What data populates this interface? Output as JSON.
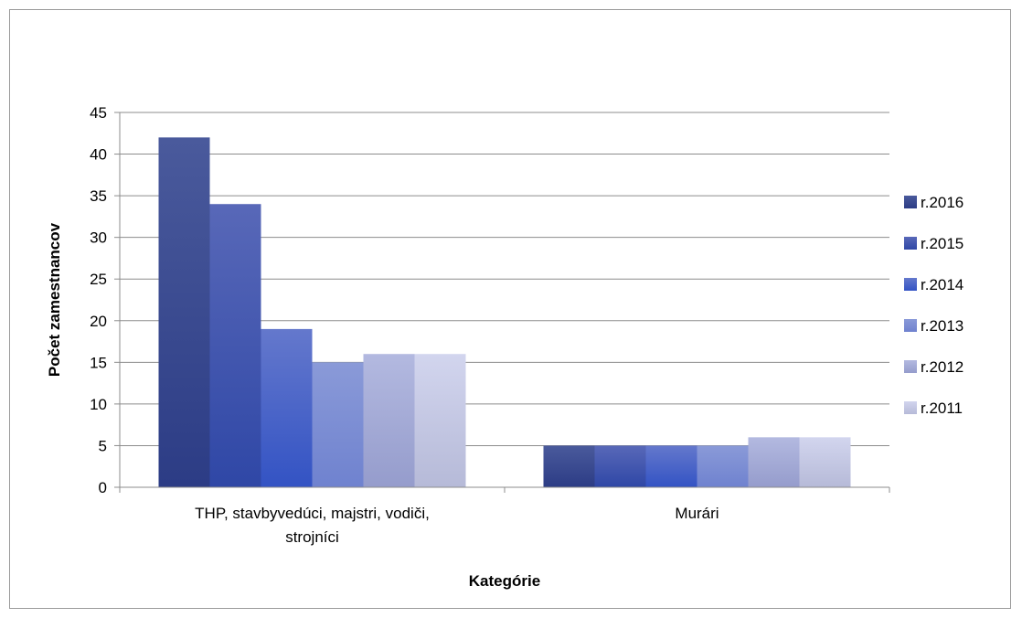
{
  "chart_data": {
    "type": "bar",
    "categories": [
      "THP, stavbyvedúci, majstri, vodiči, strojníci",
      "Murári"
    ],
    "series": [
      {
        "name": "r.2016",
        "values": [
          42,
          5
        ]
      },
      {
        "name": "r.2015",
        "values": [
          34,
          5
        ]
      },
      {
        "name": "r.2014",
        "values": [
          19,
          5
        ]
      },
      {
        "name": "r.2013",
        "values": [
          15,
          5
        ]
      },
      {
        "name": "r.2012",
        "values": [
          16,
          6
        ]
      },
      {
        "name": "r.2011",
        "values": [
          16,
          6
        ]
      }
    ],
    "xlabel": "Kategórie",
    "ylabel": "Počet zamestnancov",
    "ylim": [
      0,
      45
    ],
    "yticks": [
      0,
      5,
      10,
      15,
      20,
      25,
      30,
      35,
      40,
      45
    ],
    "grid": true,
    "legend_position": "right",
    "colors": {
      "r.2016": [
        "#4a5a9c",
        "#2c3c85"
      ],
      "r.2015": [
        "#5868b8",
        "#2f47a6"
      ],
      "r.2014": [
        "#6478cc",
        "#3353c4"
      ],
      "r.2013": [
        "#8a9ad8",
        "#6f82cf"
      ],
      "r.2012": [
        "#b3b9e0",
        "#959ccc"
      ],
      "r.2011": [
        "#d2d5ee",
        "#b6bad8"
      ]
    }
  }
}
